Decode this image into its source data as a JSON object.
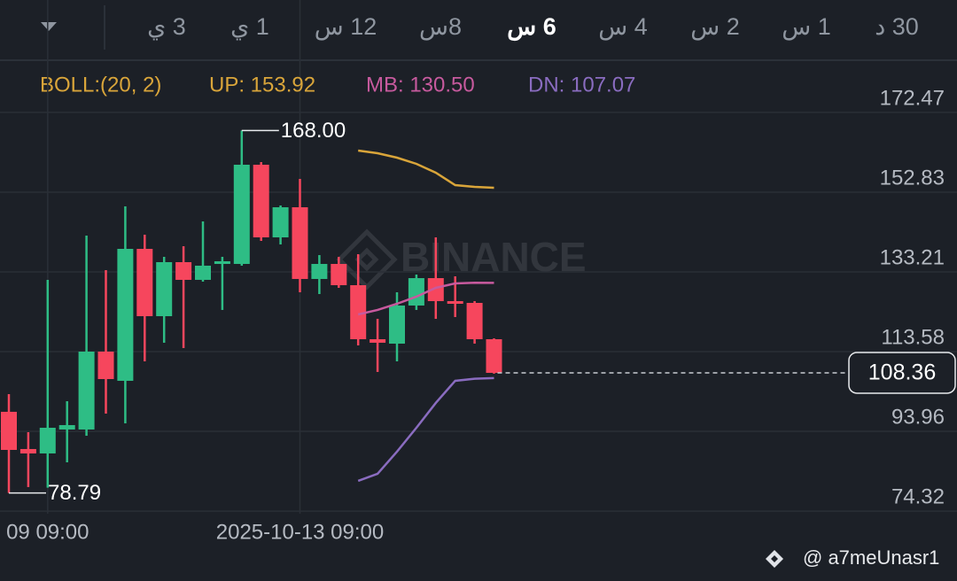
{
  "chart_data": {
    "type": "candlestick",
    "tabs": [
      "3 ي",
      "1 ي",
      "12 س",
      "8س",
      "6 س",
      "4 س",
      "2 س",
      "1 س",
      "30 د"
    ],
    "active_tab": 4,
    "indicator_label": "BOLL:(20, 2)",
    "watermark": "BINANCE",
    "credit": "@ a7meUnasr1",
    "categories": [
      null,
      null,
      "09 09:00",
      null,
      null,
      null,
      null,
      null,
      null,
      null,
      null,
      null,
      null,
      null,
      null,
      "2025-10-13 09:00",
      null,
      null,
      null,
      null,
      null,
      null,
      null,
      null,
      null,
      null
    ],
    "up_color": "#2ebd85",
    "down_color": "#f6465d",
    "candles": [
      {
        "open": 98.77,
        "high": 103.13,
        "low": 78.79,
        "close": 89.39
      },
      {
        "open": 89.61,
        "high": 93.75,
        "low": 80.24,
        "close": 88.52
      },
      {
        "open": 88.52,
        "high": 131.25,
        "low": 80.1,
        "close": 94.84
      },
      {
        "open": 94.41,
        "high": 101.38,
        "low": 86.34,
        "close": 95.5
      },
      {
        "open": 94.41,
        "high": 142.15,
        "low": 92.88,
        "close": 113.59
      },
      {
        "open": 113.59,
        "high": 133.65,
        "low": 98.33,
        "close": 106.83
      },
      {
        "open": 106.4,
        "high": 149.34,
        "low": 95.93,
        "close": 138.88
      },
      {
        "open": 138.88,
        "high": 142.37,
        "low": 111.19,
        "close": 122.31
      },
      {
        "open": 122.31,
        "high": 136.92,
        "low": 115.77,
        "close": 135.61
      },
      {
        "open": 135.61,
        "high": 139.53,
        "low": 114.46,
        "close": 131.25
      },
      {
        "open": 131.25,
        "high": 145.64,
        "low": 130.81,
        "close": 134.74
      },
      {
        "open": 135.17,
        "high": 136.92,
        "low": 123.84,
        "close": 135.83
      },
      {
        "open": 135.17,
        "high": 168.0,
        "low": 134.74,
        "close": 159.59
      },
      {
        "open": 159.59,
        "high": 160.24,
        "low": 140.84,
        "close": 141.71
      },
      {
        "open": 141.71,
        "high": 149.56,
        "low": 139.97,
        "close": 149.12
      },
      {
        "open": 149.12,
        "high": 156.1,
        "low": 128.2,
        "close": 131.47
      },
      {
        "open": 131.47,
        "high": 137.35,
        "low": 127.76,
        "close": 135.17
      },
      {
        "open": 135.17,
        "high": 136.92,
        "low": 129.29,
        "close": 129.94
      },
      {
        "open": 129.94,
        "high": 137.57,
        "low": 115.12,
        "close": 116.64
      },
      {
        "open": 116.64,
        "high": 121.66,
        "low": 108.58,
        "close": 115.77
      },
      {
        "open": 115.55,
        "high": 128.2,
        "low": 111.19,
        "close": 124.93
      },
      {
        "open": 124.93,
        "high": 132.56,
        "low": 123.84,
        "close": 131.68
      },
      {
        "open": 131.68,
        "high": 141.71,
        "low": 121.66,
        "close": 126.02
      },
      {
        "open": 126.02,
        "high": 132.12,
        "low": 122.09,
        "close": 125.36
      },
      {
        "open": 125.58,
        "high": 126.02,
        "low": 115.55,
        "close": 116.64
      },
      {
        "open": 116.64,
        "high": 116.86,
        "low": 108.15,
        "close": 108.36
      }
    ],
    "high_label": "168.00",
    "low_label": "78.79",
    "last_price_label": "108.36",
    "series": [
      {
        "label": "UP: 153.92",
        "color": "#d9a53a",
        "values": [
          null,
          null,
          null,
          null,
          null,
          null,
          null,
          null,
          null,
          null,
          null,
          null,
          null,
          null,
          null,
          null,
          null,
          null,
          163.08,
          162.42,
          161.33,
          159.81,
          157.63,
          154.57,
          154.14,
          153.92
        ]
      },
      {
        "label": "MB: 130.50",
        "color": "#c75a9e",
        "values": [
          null,
          null,
          null,
          null,
          null,
          null,
          null,
          null,
          null,
          null,
          null,
          null,
          null,
          null,
          null,
          null,
          null,
          null,
          122.75,
          123.84,
          125.36,
          127.11,
          129.29,
          130.38,
          130.55,
          130.5
        ]
      },
      {
        "label": "DN: 107.07",
        "color": "#8a6cc0",
        "values": [
          null,
          null,
          null,
          null,
          null,
          null,
          null,
          null,
          null,
          null,
          null,
          null,
          null,
          null,
          null,
          null,
          null,
          null,
          81.76,
          83.51,
          88.96,
          94.84,
          100.95,
          106.4,
          106.9,
          107.07
        ]
      }
    ],
    "ylim": [
      73.69,
      184.88
    ],
    "yticks": [
      172.47,
      152.83,
      133.21,
      113.58,
      93.96,
      74.32
    ],
    "grid": true
  }
}
